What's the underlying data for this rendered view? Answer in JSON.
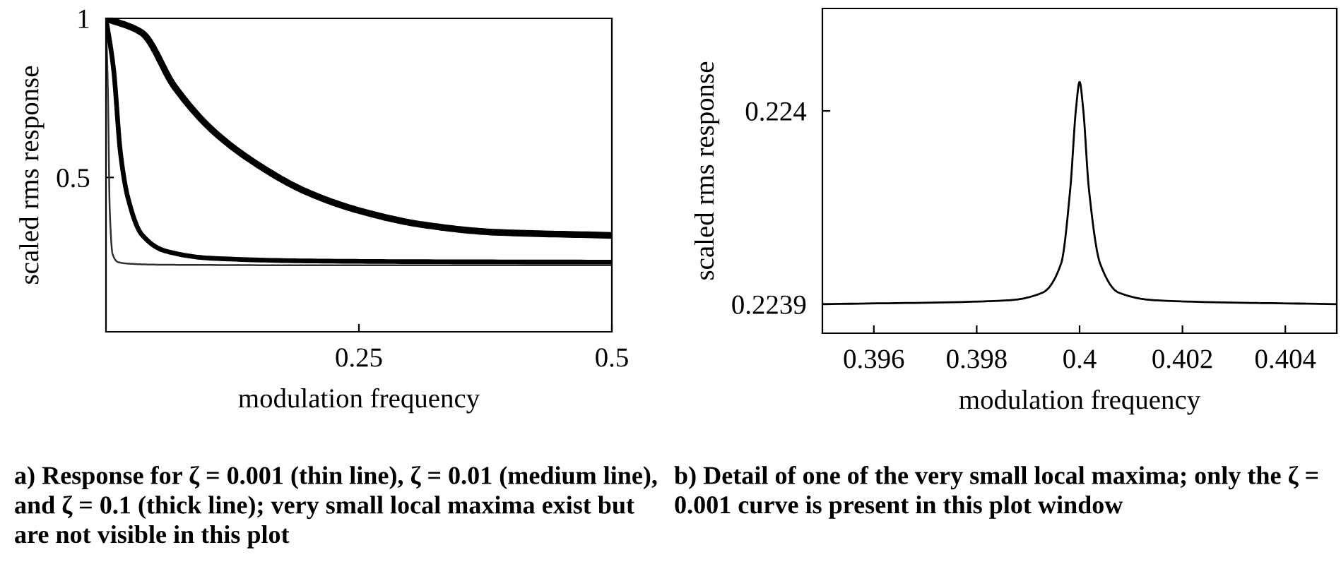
{
  "chart_data": [
    {
      "type": "line",
      "xlabel": "modulation frequency",
      "ylabel": "scaled rms response",
      "xlim": [
        0,
        0.5
      ],
      "ylim": [
        0.015,
        1.0
      ],
      "xticks": [
        0.25,
        0.5
      ],
      "yticks": [
        0.5,
        1
      ],
      "grid": false,
      "marker": "none",
      "line_style": "solid",
      "series": [
        {
          "color": "#303030",
          "x": [
            0,
            0.0019,
            0.0037,
            0.0065,
            0.012,
            0.023,
            0.05,
            0.1,
            0.2,
            0.3,
            0.4,
            0.5
          ],
          "values": [
            1.0,
            0.77,
            0.4,
            0.26,
            0.234,
            0.229,
            0.226,
            0.225,
            0.224,
            0.224,
            0.224,
            0.224
          ]
        },
        {
          "color": "#000000",
          "x": [
            0,
            0.0074,
            0.0144,
            0.0214,
            0.0353,
            0.0586,
            0.105,
            0.221,
            0.35,
            0.5
          ],
          "values": [
            1.0,
            0.843,
            0.575,
            0.44,
            0.321,
            0.269,
            0.246,
            0.237,
            0.235,
            0.234
          ]
        },
        {
          "color": "#000000",
          "x": [
            0,
            0.0353,
            0.068,
            0.105,
            0.1515,
            0.198,
            0.25,
            0.314,
            0.384,
            0.5
          ],
          "values": [
            1.0,
            0.955,
            0.784,
            0.649,
            0.537,
            0.455,
            0.396,
            0.351,
            0.328,
            0.318
          ]
        }
      ],
      "annotations": [
        "a) Response for ζ = 0.001 (thin line), ζ = 0.01 (medium line), and ζ = 0.1 (thick line); very small local maxima exist but are not visible in this plot"
      ]
    },
    {
      "type": "line",
      "xlabel": "modulation frequency",
      "ylabel": "scaled rms response",
      "xlim": [
        0.395,
        0.405
      ],
      "ylim": [
        0.223885,
        0.224053
      ],
      "xticks": [
        0.396,
        0.398,
        {
          "value": 0.4,
          "label": "0.4"
        },
        0.402,
        0.404
      ],
      "yticks": [
        0.2239,
        0.224
      ],
      "grid": false,
      "marker": "none",
      "line_style": "solid",
      "series": [
        {
          "color": "#000000",
          "x": [
            0.395,
            0.3986,
            0.39928,
            0.39964,
            0.39982,
            0.39993,
            0.4,
            0.40007,
            0.40018,
            0.4004,
            0.40076,
            0.4015,
            0.405
          ],
          "values": [
            0.2239,
            0.223902,
            0.223906,
            0.223921,
            0.22396,
            0.224001,
            0.224015,
            0.224001,
            0.22396,
            0.223921,
            0.223906,
            0.223902,
            0.2239
          ]
        }
      ],
      "annotations": [
        "b) Detail of one of the very small local maxima; only the ζ = 0.001 curve is present in this plot window"
      ]
    }
  ]
}
